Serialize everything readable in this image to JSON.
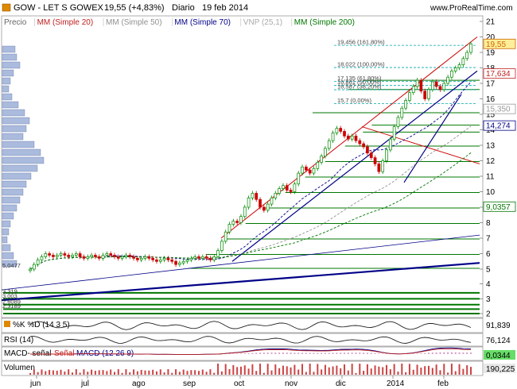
{
  "header": {
    "ticker": "GOW - LET S GOWEX",
    "quote": "19,55 (+4,83%)",
    "period": "Diario",
    "date": "19 feb 2014",
    "site": "www.ProRealTime.com"
  },
  "legend": [
    {
      "label": "Precio",
      "color": "#666666"
    },
    {
      "label": "MM (Simple 20)",
      "color": "#c02020"
    },
    {
      "label": "MM (Simple 50)",
      "color": "#909090"
    },
    {
      "label": "MM (Simple 70)",
      "color": "#000088"
    },
    {
      "label": "VNP (25,1)",
      "color": "#aaaaaa"
    },
    {
      "label": "MM (Simple 200)",
      "color": "#007700"
    }
  ],
  "colors": {
    "up": "#008800",
    "down": "#cc0000",
    "fib": "#00aaaa",
    "support": "#007700",
    "trend_blue": "#000088",
    "trend_red": "#cc0000",
    "badge": "#ffee99"
  },
  "chart_data": {
    "type": "candlestick",
    "x_months": [
      "jun",
      "jul",
      "ago",
      "sep",
      "oct",
      "nov",
      "dic",
      "2014",
      "feb"
    ],
    "y_ticks": [
      2,
      3,
      4,
      5,
      6,
      7,
      8,
      9,
      10,
      11,
      12,
      13,
      14,
      15,
      16,
      17,
      18,
      19,
      20,
      21
    ],
    "y_range": [
      2,
      21
    ],
    "fib_levels": [
      {
        "label": "19,456 (161,80%)",
        "value": 19.456
      },
      {
        "label": "18,022 (100,00%)",
        "value": 18.022
      },
      {
        "label": "17,135 (61,80%)",
        "value": 17.135
      },
      {
        "label": "16,861 (50,00%)",
        "value": 16.861
      },
      {
        "label": "16,587 (38,20%)",
        "value": 16.587
      },
      {
        "label": "15,7 (0,00%)",
        "value": 15.7
      }
    ],
    "price_badges": [
      {
        "label": "19,55",
        "value": 19.55,
        "color": "#cc6600"
      },
      {
        "label": "17,634",
        "value": 17.634,
        "color": "#c02020"
      },
      {
        "label": "15,350",
        "value": 15.35,
        "color": "#999999"
      },
      {
        "label": "14,274",
        "value": 14.274,
        "color": "#000088"
      },
      {
        "label": "9,0357",
        "value": 9.0357,
        "color": "#007700"
      }
    ],
    "left_labels": [
      {
        "label": "5,0477",
        "value": 5.0477
      },
      {
        "label": "3,319",
        "value": 3.319
      },
      {
        "label": "3,003",
        "value": 3.003
      },
      {
        "label": "2,6089",
        "value": 2.6089
      },
      {
        "label": "2,3189",
        "value": 2.3189
      }
    ],
    "support_levels": [
      2.0,
      2.3,
      2.6,
      3.0,
      3.4,
      5.05,
      5.95,
      6.95,
      7.95,
      8.95,
      9.95,
      10.95,
      11.95,
      12.95,
      13.85,
      14.3,
      15.1,
      16.6,
      17.2
    ],
    "price_series": [
      5.0,
      5.3,
      5.6,
      5.8,
      6.0,
      5.9,
      5.8,
      5.9,
      6.0,
      5.9,
      5.8,
      5.9,
      6.0,
      5.8,
      5.7,
      5.8,
      5.9,
      5.8,
      5.7,
      5.9,
      6.0,
      5.9,
      5.8,
      5.7,
      5.8,
      5.9,
      5.8,
      5.7,
      5.6,
      5.7,
      5.8,
      5.7,
      5.6,
      5.5,
      5.6,
      5.7,
      5.6,
      5.5,
      5.3,
      5.4,
      5.5,
      5.6,
      5.7,
      5.8,
      5.7,
      5.8,
      5.7,
      5.6,
      5.8,
      6.2,
      6.8,
      7.4,
      7.9,
      8.1,
      8.0,
      8.4,
      9.0,
      9.6,
      9.9,
      9.5,
      9.0,
      8.8,
      9.2,
      9.6,
      9.9,
      10.2,
      10.4,
      10.1,
      10.0,
      10.5,
      11.2,
      11.6,
      11.4,
      11.2,
      11.5,
      11.9,
      12.3,
      12.8,
      13.3,
      13.8,
      14.1,
      13.9,
      13.6,
      13.4,
      13.6,
      13.3,
      13.1,
      12.9,
      12.5,
      12.2,
      11.8,
      11.3,
      12.0,
      12.7,
      13.4,
      14.2,
      14.8,
      15.4,
      15.9,
      16.4,
      16.8,
      17.2,
      16.5,
      16.0,
      16.6,
      17.1,
      16.8,
      16.6,
      17.0,
      17.4,
      17.8,
      18.0,
      18.2,
      18.6,
      19.0,
      19.55
    ],
    "indicators": [
      {
        "name": "%K %D (14 3 5)",
        "value_label": "91,839"
      },
      {
        "name": "RSI (14)",
        "value_label": "76,124"
      },
      {
        "name": "MACD- señal  Señal  MACD (12 26 9)",
        "value_label": "0,0344"
      },
      {
        "name": "Volumen",
        "value_label": "190,225"
      }
    ]
  },
  "panels": {
    "stoch_label": "%K %D (14 3 5)",
    "stoch_value": "91,839",
    "rsi_label": "RSI (14)",
    "rsi_value": "76,124",
    "macd_label_1": "MACD- señal",
    "macd_label_2": "Señal",
    "macd_label_3": "MACD (12 26 9)",
    "macd_value": "0,0344",
    "vol_label": "Volumen",
    "vol_value": "190,225"
  }
}
